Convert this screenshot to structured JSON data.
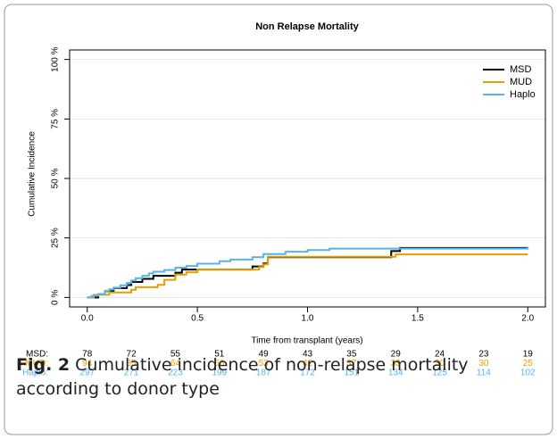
{
  "chart_data": {
    "type": "step",
    "title": "Non Relapse Mortality",
    "x_label": "Time from transplant (years)",
    "y_label": "Cumulative Incidence",
    "xlim": [
      -0.08,
      2.08
    ],
    "ylim": [
      -4,
      104
    ],
    "xticks": [
      {
        "value": 0,
        "label": "0.0"
      },
      {
        "value": 0.5,
        "label": "0.5"
      },
      {
        "value": 1,
        "label": "1.0"
      },
      {
        "value": 1.5,
        "label": "1.5"
      },
      {
        "value": 2,
        "label": "2.0"
      }
    ],
    "yticks": [
      {
        "value": 0,
        "label": "0 %"
      },
      {
        "value": 25,
        "label": "25 %"
      },
      {
        "value": 50,
        "label": "50 %"
      },
      {
        "value": 75,
        "label": "75 %"
      },
      {
        "value": 100,
        "label": "100 %"
      }
    ],
    "grid": true,
    "legend": "top-right",
    "series": [
      {
        "name": "MSD",
        "color": "#000000",
        "x": [
          0,
          0.05,
          0.08,
          0.12,
          0.18,
          0.2,
          0.25,
          0.3,
          0.4,
          0.43,
          0.75,
          0.8,
          0.82,
          1.38,
          1.42,
          2.0
        ],
        "values": [
          0,
          1.3,
          2.6,
          3.9,
          5.2,
          6.5,
          7.8,
          9.1,
          10.4,
          11.7,
          13,
          14.3,
          16.9,
          19.5,
          20.8,
          20.8
        ]
      },
      {
        "name": "MUD",
        "color": "#e69f00",
        "x": [
          0,
          0.03,
          0.1,
          0.2,
          0.22,
          0.32,
          0.35,
          0.4,
          0.45,
          0.5,
          0.78,
          0.8,
          0.82,
          1.4,
          2.0
        ],
        "values": [
          0,
          1.1,
          2.1,
          3.2,
          4.3,
          5.3,
          7.4,
          9.6,
          10.6,
          11.7,
          12.8,
          13.9,
          17.1,
          18.1,
          18.1
        ]
      },
      {
        "name": "Haplo",
        "color": "#56b4e9",
        "x": [
          0,
          0.02,
          0.05,
          0.08,
          0.1,
          0.12,
          0.15,
          0.18,
          0.2,
          0.22,
          0.25,
          0.28,
          0.3,
          0.35,
          0.4,
          0.45,
          0.5,
          0.6,
          0.65,
          0.75,
          0.8,
          0.9,
          1.0,
          1.1,
          2.0
        ],
        "values": [
          0,
          0.7,
          1.4,
          2.7,
          3.4,
          4.1,
          5.1,
          6.1,
          7.1,
          8.1,
          9.1,
          10.1,
          10.8,
          11.5,
          12.5,
          13.2,
          14.2,
          15.2,
          15.9,
          16.9,
          18.2,
          19.2,
          19.9,
          20.5,
          21.2
        ]
      }
    ],
    "risk_table": [
      {
        "label": "MSD:",
        "color": "#000000",
        "values": [
          78,
          72,
          55,
          51,
          49,
          43,
          35,
          29,
          24,
          23,
          19
        ]
      },
      {
        "label": "MUD:",
        "color": "#e69f00",
        "values": [
          94,
          85,
          64,
          56,
          53,
          42,
          37,
          33,
          30,
          30,
          25
        ]
      },
      {
        "label": "Haplo:",
        "color": "#56b4e9",
        "values": [
          297,
          271,
          223,
          199,
          187,
          172,
          151,
          134,
          125,
          114,
          102
        ]
      }
    ]
  },
  "caption": {
    "label": "Fig. 2",
    "text": "Cumulative incidence of non-relapse mortality according to donor type"
  }
}
